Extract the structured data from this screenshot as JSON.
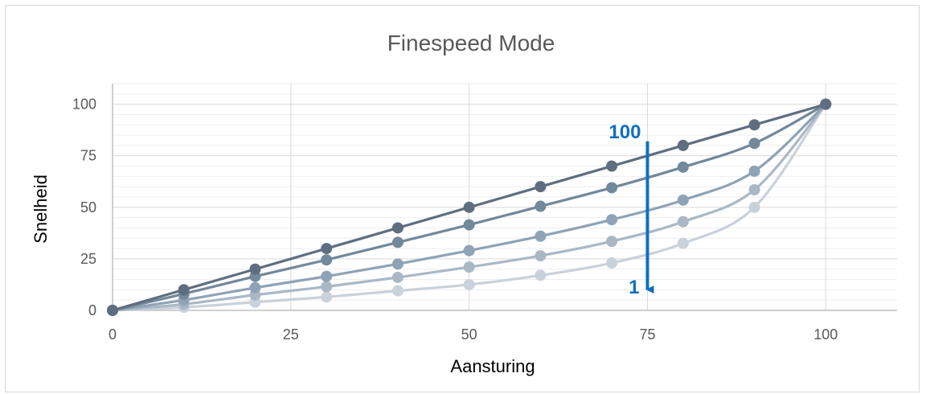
{
  "chart_data": {
    "type": "line",
    "title": "Finespeed Mode",
    "xlabel": "Aansturing",
    "ylabel": "Snelheid",
    "xlim": [
      0,
      110
    ],
    "ylim": [
      0,
      110
    ],
    "x_ticks": [
      0,
      25,
      50,
      75,
      100
    ],
    "y_ticks": [
      0,
      25,
      50,
      75,
      100
    ],
    "grid": true,
    "x": [
      0,
      10,
      20,
      30,
      40,
      50,
      60,
      70,
      80,
      90,
      100
    ],
    "series": [
      {
        "color": "#5e6e80",
        "values": [
          0,
          10,
          20,
          30,
          40,
          50,
          60,
          70,
          80,
          90,
          100
        ]
      },
      {
        "color": "#72889b",
        "values": [
          0,
          8,
          16.5,
          24.5,
          33,
          41.5,
          50.5,
          59.5,
          69.5,
          81,
          100
        ]
      },
      {
        "color": "#8ea3b5",
        "values": [
          0,
          5,
          11,
          16.5,
          22.5,
          29,
          36,
          44,
          53.5,
          67.5,
          100
        ]
      },
      {
        "color": "#aab8c6",
        "values": [
          0,
          3,
          7.5,
          11.5,
          16,
          21,
          26.5,
          33.5,
          43,
          58.5,
          100
        ]
      },
      {
        "color": "#c9d1da",
        "values": [
          0,
          1.5,
          4,
          6.5,
          9.5,
          12.5,
          17,
          23,
          32.5,
          50,
          100
        ]
      }
    ],
    "annotation": {
      "top_label": "100",
      "bottom_label": "1",
      "color": "#0e70c0",
      "x": 75,
      "y_start": 82,
      "y_end": 14
    }
  }
}
